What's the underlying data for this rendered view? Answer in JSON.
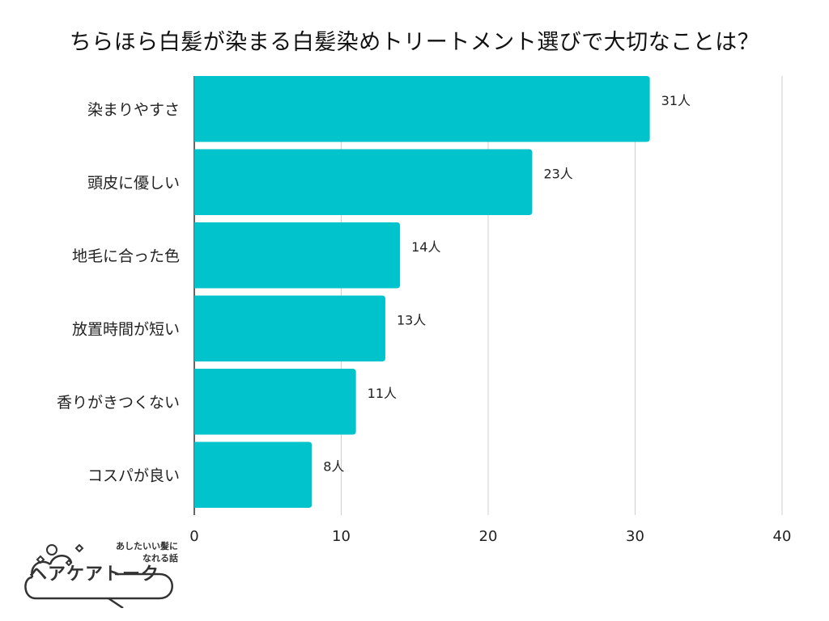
{
  "title": "ちらほら白髪が染まる白髪染めトリートメント選びで大切なことは？",
  "chart_data": {
    "type": "bar",
    "orientation": "horizontal",
    "categories": [
      "染まりやすさ",
      "頭皮に優しい",
      "地毛に合った色",
      "放置時間が短い",
      "香りがきつくない",
      "コスパが良い"
    ],
    "values": [
      31,
      23,
      14,
      13,
      11,
      8
    ],
    "value_labels": [
      "31人",
      "23人",
      "14人",
      "13人",
      "11人",
      "8人"
    ],
    "xlim": [
      0,
      40
    ],
    "xticks": [
      "0",
      "10",
      "20",
      "30",
      "40"
    ],
    "grid": "vertical",
    "bar_color": "#00c3cb"
  },
  "logo": {
    "tagline_line1": "あしたいい髪に",
    "tagline_line2": "なれる話",
    "name": "ヘアケアトーク"
  }
}
